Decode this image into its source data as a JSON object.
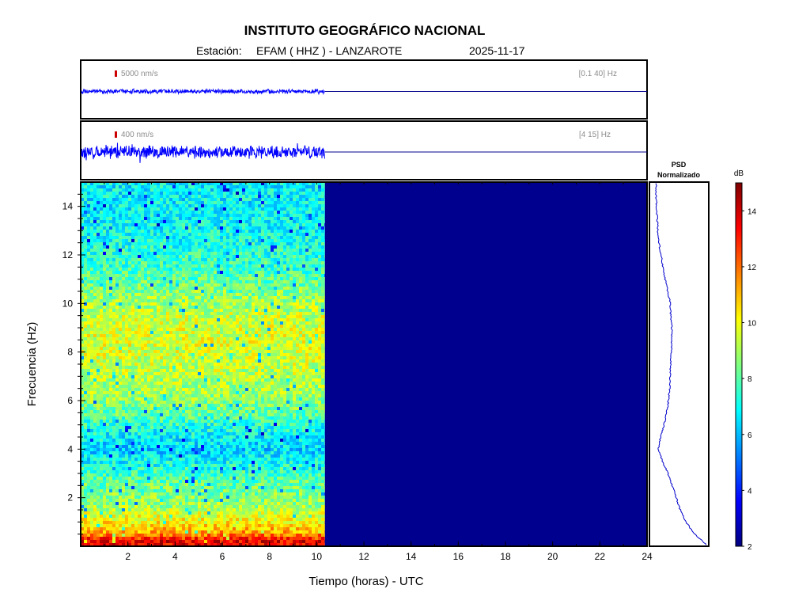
{
  "header": {
    "institution": "INSTITUTO GEOGRÁFICO NACIONAL",
    "station_label": "Estación:",
    "station": "EFAM ( HHZ ) - LANZAROTE",
    "date": "2025-11-17"
  },
  "traces": [
    {
      "scale_label": "5000 nm/s",
      "band_label": "[0.1 40] Hz"
    },
    {
      "scale_label": "400 nm/s",
      "band_label": "[4 15] Hz"
    }
  ],
  "psd_title": [
    "PSD",
    "Normalizado"
  ],
  "colors": {
    "trace": "#0000ff",
    "empty_fill": "#00008f",
    "scale_bar": "#cc0000",
    "colormap": "jet"
  },
  "chart_data": {
    "type": "heatmap",
    "xlabel": "Tiempo (horas) - UTC",
    "ylabel": "Frecuencia  (Hz)",
    "xlim": [
      0,
      24
    ],
    "ylim": [
      0,
      15
    ],
    "x_ticks": [
      2,
      4,
      6,
      8,
      10,
      12,
      14,
      16,
      18,
      20,
      22,
      24
    ],
    "y_ticks": [
      2,
      4,
      6,
      8,
      10,
      12,
      14
    ],
    "data_end_hour": 10.35,
    "colorbar": {
      "label": "dB",
      "range": [
        2,
        15
      ],
      "ticks": [
        2,
        4,
        6,
        8,
        10,
        12,
        14
      ]
    },
    "mean_spectrum_db": {
      "frequency_hz": [
        0.2,
        0.5,
        0.8,
        1.2,
        1.6,
        2,
        2.5,
        3,
        3.5,
        4,
        4.5,
        5,
        5.5,
        6,
        6.5,
        7,
        7.5,
        8,
        8.5,
        9,
        9.5,
        10,
        10.5,
        11,
        11.5,
        12,
        12.5,
        13,
        13.5,
        14,
        14.5,
        15
      ],
      "level_db": [
        13.6,
        11.6,
        10.6,
        9.8,
        9.0,
        8.6,
        8.2,
        7.7,
        6.9,
        6.4,
        6.8,
        7.4,
        8.2,
        8.7,
        9.0,
        9.2,
        9.4,
        9.6,
        9.7,
        9.6,
        9.4,
        9.0,
        8.6,
        8.0,
        7.7,
        7.4,
        7.2,
        7.0,
        6.9,
        6.8,
        6.8,
        6.8
      ]
    },
    "psd_normalized": {
      "frequency_hz": [
        0.05,
        0.2,
        0.5,
        1,
        1.5,
        2,
        2.5,
        3,
        3.5,
        4,
        4.5,
        5,
        5.5,
        6,
        6.5,
        7,
        7.5,
        8,
        8.5,
        9,
        9.5,
        10,
        10.5,
        11,
        11.5,
        12,
        12.5,
        13,
        13.5,
        14,
        14.5,
        15
      ],
      "value": [
        0.99,
        0.92,
        0.78,
        0.62,
        0.52,
        0.45,
        0.38,
        0.3,
        0.2,
        0.13,
        0.17,
        0.23,
        0.28,
        0.31,
        0.33,
        0.34,
        0.35,
        0.36,
        0.37,
        0.37,
        0.35,
        0.34,
        0.3,
        0.25,
        0.21,
        0.18,
        0.14,
        0.12,
        0.11,
        0.1,
        0.09,
        0.09
      ]
    }
  }
}
